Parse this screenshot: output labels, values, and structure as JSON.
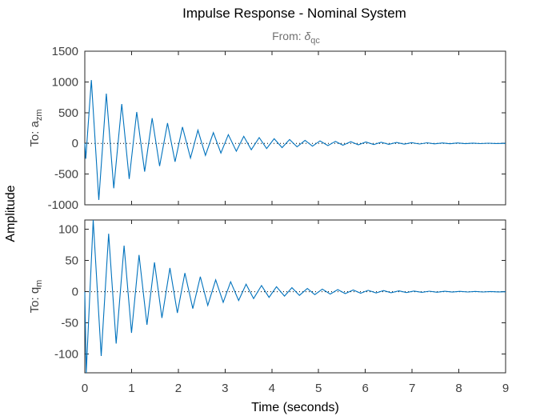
{
  "title": "Impulse Response - Nominal System",
  "from_label": {
    "prefix": "From: ",
    "symbol": "δ",
    "subscript": "qc"
  },
  "colors": {
    "line": "#0072BD",
    "frame": "#262626",
    "text": "#404040"
  },
  "chart_data": {
    "type": "line",
    "title": "Impulse Response - Nominal System",
    "xlabel": "Time (seconds)",
    "ylabel": "Amplitude",
    "xlim": [
      0,
      9
    ],
    "x_ticks": [
      "0",
      "1",
      "2",
      "3",
      "4",
      "5",
      "6",
      "7",
      "8",
      "9"
    ],
    "grid": false,
    "panels": [
      {
        "output_label": {
          "prefix": "To: ",
          "symbol": "a",
          "subscript": "zm"
        },
        "ylim": [
          -1000,
          1500
        ],
        "y_ticks": [
          -1000,
          -500,
          0,
          500,
          1000,
          1500
        ],
        "y_tick_labels": [
          "-1000",
          "-500",
          "0",
          "500",
          "1000",
          "1500"
        ],
        "series": [
          {
            "x": [
              0,
              0.02,
              0.14,
              0.3,
              0.46,
              0.62,
              0.79,
              0.95,
              1.11,
              1.28,
              1.44,
              1.6,
              1.77,
              1.93,
              2.09,
              2.26,
              2.42,
              2.58,
              2.75,
              2.91,
              3.07,
              3.24,
              3.4,
              3.56,
              3.73,
              3.89,
              4.05,
              4.22,
              4.38,
              4.54,
              4.71,
              4.87,
              5.03,
              5.2,
              5.36,
              5.52,
              5.69,
              5.85,
              6.01,
              6.18,
              6.34,
              6.5,
              6.67,
              6.83,
              6.99,
              7.16,
              7.32,
              7.48,
              7.65,
              7.81,
              7.97,
              8.14,
              8.3,
              8.46,
              8.63,
              8.79,
              9.0
            ],
            "y": [
              0,
              -250,
              1030,
              -920,
              810,
              -730,
              640,
              -580,
              510,
              -460,
              410,
              -370,
              330,
              -300,
              265,
              -240,
              215,
              -195,
              175,
              -158,
              142,
              -128,
              115,
              -104,
              94,
              -85,
              76,
              -69,
              62,
              -56,
              50,
              -45,
              41,
              -37,
              33,
              -30,
              27,
              -24,
              22,
              -20,
              18,
              -16,
              14,
              -13,
              12,
              -10,
              9,
              -8,
              7,
              -6,
              6,
              -5,
              4,
              -4,
              3,
              -3,
              0
            ]
          }
        ]
      },
      {
        "output_label": {
          "prefix": "To: ",
          "symbol": "q",
          "subscript": "m"
        },
        "ylim": [
          -130,
          115
        ],
        "y_ticks": [
          -100,
          -50,
          0,
          50,
          100
        ],
        "y_tick_labels": [
          "-100",
          "-50",
          "0",
          "50",
          "100"
        ],
        "series": [
          {
            "x": [
              0,
              0.03,
              0.18,
              0.35,
              0.51,
              0.67,
              0.84,
              1.0,
              1.16,
              1.33,
              1.49,
              1.65,
              1.82,
              1.98,
              2.14,
              2.31,
              2.47,
              2.63,
              2.8,
              2.96,
              3.12,
              3.29,
              3.45,
              3.61,
              3.78,
              3.94,
              4.1,
              4.27,
              4.43,
              4.59,
              4.76,
              4.92,
              5.08,
              5.25,
              5.41,
              5.57,
              5.74,
              5.9,
              6.06,
              6.23,
              6.39,
              6.55,
              6.72,
              6.88,
              7.04,
              7.21,
              7.37,
              7.53,
              7.7,
              7.86,
              8.02,
              8.19,
              8.35,
              8.51,
              8.68,
              8.84,
              9.0
            ],
            "y": [
              0,
              -130,
              115,
              -103,
              93,
              -83,
              74,
              -66,
              59,
              -53,
              47,
              -42,
              38,
              -34,
              30,
              -27,
              24,
              -22,
              19,
              -17,
              16,
              -14,
              12,
              -11,
              10,
              -9,
              8,
              -7,
              6.5,
              -5.8,
              5.2,
              -4.7,
              4.2,
              -3.8,
              3.4,
              -3.0,
              2.7,
              -2.4,
              2.2,
              -2.0,
              1.8,
              -1.6,
              1.4,
              -1.3,
              1.1,
              -1.0,
              0.9,
              -0.8,
              0.7,
              -0.6,
              0.6,
              -0.5,
              0.4,
              -0.4,
              0.3,
              -0.3,
              0
            ]
          }
        ]
      }
    ]
  }
}
